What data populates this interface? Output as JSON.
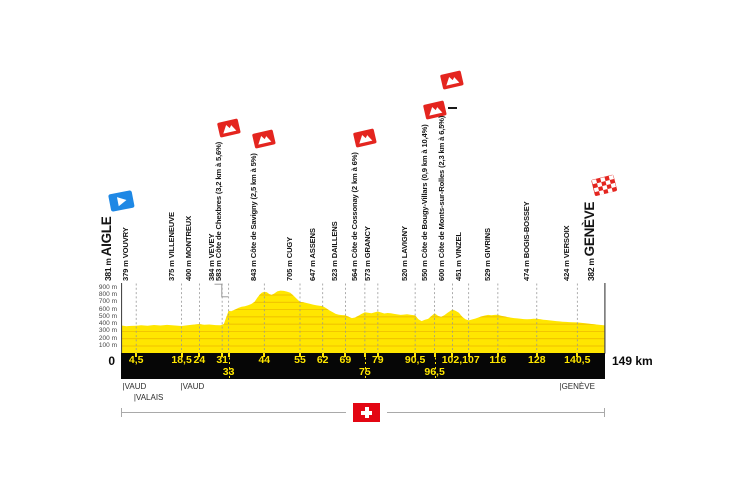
{
  "stage": {
    "origin_label": "0",
    "total_label": "149 km",
    "start_name": "AIGLE",
    "finish_name": "GENÈVE"
  },
  "chart_data": {
    "type": "area",
    "xlabel": "km",
    "ylabel": "m",
    "xlim": [
      0,
      149
    ],
    "ylim": [
      0,
      960
    ],
    "grid": "horizontal-inside-area",
    "y_ticks": [
      "900 m",
      "800 m",
      "700 m",
      "600 m",
      "500 m",
      "400 m",
      "300 m",
      "200 m",
      "100 m"
    ],
    "km_ticks_row1": [
      {
        "label": "4,5",
        "km": 4.5
      },
      {
        "label": "18,5",
        "km": 18.5
      },
      {
        "label": "24",
        "km": 24
      },
      {
        "label": "31",
        "km": 31
      },
      {
        "label": "44",
        "km": 44
      },
      {
        "label": "55",
        "km": 55
      },
      {
        "label": "62",
        "km": 62
      },
      {
        "label": "69",
        "km": 69
      },
      {
        "label": "79",
        "km": 79
      },
      {
        "label": "90,5",
        "km": 90.5
      },
      {
        "label": "102,107",
        "km": 104.55
      },
      {
        "label": "116",
        "km": 116
      },
      {
        "label": "128",
        "km": 128
      },
      {
        "label": "140,5",
        "km": 140.5
      }
    ],
    "km_ticks_row2": [
      {
        "label": "33",
        "km": 33
      },
      {
        "label": "75",
        "km": 75
      },
      {
        "label": "96,5",
        "km": 96.5
      }
    ],
    "waypoints": [
      {
        "km": 0,
        "elevation": "381 m",
        "name": "AIGLE",
        "type": "start"
      },
      {
        "km": 4.5,
        "elevation": "379 m",
        "name": "VOUVRY",
        "type": "town"
      },
      {
        "km": 18.5,
        "elevation": "375 m",
        "name": "VILLENEUVE",
        "type": "town"
      },
      {
        "km": 24,
        "elevation": "400 m",
        "name": "MONTREUX",
        "type": "town"
      },
      {
        "km": 31,
        "elevation": "384 m",
        "name": "VEVEY",
        "type": "town"
      },
      {
        "km": 33,
        "elevation": "583 m",
        "name": "Côte de Chexbres (3,2 km à 5,6%)",
        "type": "climb"
      },
      {
        "km": 44,
        "elevation": "843 m",
        "name": "Côte de Savigny (2,5 km à 5%)",
        "type": "climb"
      },
      {
        "km": 55,
        "elevation": "705 m",
        "name": "CUGY",
        "type": "town"
      },
      {
        "km": 62,
        "elevation": "647 m",
        "name": "ASSENS",
        "type": "town"
      },
      {
        "km": 69,
        "elevation": "523 m",
        "name": "DAILLENS",
        "type": "town"
      },
      {
        "km": 75,
        "elevation": "564 m",
        "name": "Côte de Cossonay (2 km à 6%)",
        "type": "climb"
      },
      {
        "km": 79,
        "elevation": "573 m",
        "name": "GRANCY",
        "type": "town"
      },
      {
        "km": 90.5,
        "elevation": "520 m",
        "name": "LAVIGNY",
        "type": "town"
      },
      {
        "km": 96.5,
        "elevation": "550 m",
        "name": "Côte de Bougy-Villars (0,9 km à 10,4%)",
        "type": "climb"
      },
      {
        "km": 102,
        "elevation": "600 m",
        "name": "Côte de Monts-sur-Rolles (2,3 km à 6,5%)",
        "type": "climb",
        "raised": true
      },
      {
        "km": 107,
        "elevation": "451 m",
        "name": "VINZEL",
        "type": "town"
      },
      {
        "km": 116,
        "elevation": "529 m",
        "name": "GIVRINS",
        "type": "town"
      },
      {
        "km": 128,
        "elevation": "474 m",
        "name": "BOGIS-BOSSEY",
        "type": "town"
      },
      {
        "km": 140.5,
        "elevation": "424 m",
        "name": "VERSOIX",
        "type": "town"
      },
      {
        "km": 149,
        "elevation": "382 m",
        "name": "GENÈVE",
        "type": "finish"
      }
    ],
    "profile": [
      [
        0,
        381
      ],
      [
        1.5,
        372
      ],
      [
        3,
        376
      ],
      [
        4.5,
        379
      ],
      [
        6,
        384
      ],
      [
        8,
        378
      ],
      [
        10,
        388
      ],
      [
        12,
        381
      ],
      [
        14,
        389
      ],
      [
        16,
        382
      ],
      [
        18.5,
        375
      ],
      [
        20,
        383
      ],
      [
        22,
        393
      ],
      [
        24,
        400
      ],
      [
        25.5,
        391
      ],
      [
        27,
        395
      ],
      [
        29,
        387
      ],
      [
        30.5,
        384
      ],
      [
        31.5,
        400
      ],
      [
        33,
        583
      ],
      [
        33.8,
        576
      ],
      [
        35,
        601
      ],
      [
        36,
        622
      ],
      [
        37,
        638
      ],
      [
        38,
        646
      ],
      [
        39,
        659
      ],
      [
        40,
        676
      ],
      [
        41,
        706
      ],
      [
        41.8,
        760
      ],
      [
        42.5,
        801
      ],
      [
        43.2,
        831
      ],
      [
        44,
        843
      ],
      [
        44.8,
        838
      ],
      [
        45.5,
        813
      ],
      [
        46.2,
        801
      ],
      [
        47,
        819
      ],
      [
        48,
        849
      ],
      [
        49,
        860
      ],
      [
        50,
        856
      ],
      [
        51,
        846
      ],
      [
        52,
        831
      ],
      [
        53,
        791
      ],
      [
        54,
        746
      ],
      [
        55,
        705
      ],
      [
        56,
        699
      ],
      [
        57,
        690
      ],
      [
        58,
        680
      ],
      [
        59,
        668
      ],
      [
        60,
        660
      ],
      [
        61,
        652
      ],
      [
        62,
        647
      ],
      [
        63,
        621
      ],
      [
        64,
        591
      ],
      [
        65,
        566
      ],
      [
        66,
        541
      ],
      [
        67,
        528
      ],
      [
        68,
        524
      ],
      [
        69,
        523
      ],
      [
        70,
        501
      ],
      [
        71,
        483
      ],
      [
        72,
        491
      ],
      [
        73,
        516
      ],
      [
        74,
        541
      ],
      [
        75,
        564
      ],
      [
        76,
        556
      ],
      [
        77,
        549
      ],
      [
        78,
        561
      ],
      [
        79,
        573
      ],
      [
        80,
        559
      ],
      [
        81,
        546
      ],
      [
        82,
        553
      ],
      [
        83,
        549
      ],
      [
        84,
        541
      ],
      [
        85,
        533
      ],
      [
        86,
        527
      ],
      [
        87,
        531
      ],
      [
        88,
        536
      ],
      [
        89,
        529
      ],
      [
        90.5,
        520
      ],
      [
        91.5,
        468
      ],
      [
        92.5,
        442
      ],
      [
        93.5,
        460
      ],
      [
        94.5,
        472
      ],
      [
        95.5,
        511
      ],
      [
        96.5,
        550
      ],
      [
        97.5,
        516
      ],
      [
        98.5,
        499
      ],
      [
        99.5,
        521
      ],
      [
        100.5,
        556
      ],
      [
        101.5,
        586
      ],
      [
        102,
        600
      ],
      [
        103,
        581
      ],
      [
        104,
        556
      ],
      [
        105,
        501
      ],
      [
        106,
        466
      ],
      [
        107,
        451
      ],
      [
        108,
        463
      ],
      [
        109,
        476
      ],
      [
        110,
        491
      ],
      [
        111,
        506
      ],
      [
        112,
        519
      ],
      [
        113,
        526
      ],
      [
        114,
        522
      ],
      [
        115,
        527
      ],
      [
        116,
        529
      ],
      [
        117,
        516
      ],
      [
        118,
        506
      ],
      [
        119,
        496
      ],
      [
        120,
        489
      ],
      [
        121,
        483
      ],
      [
        122,
        479
      ],
      [
        123,
        473
      ],
      [
        124,
        469
      ],
      [
        125,
        466
      ],
      [
        126,
        469
      ],
      [
        127,
        473
      ],
      [
        128,
        474
      ],
      [
        129,
        469
      ],
      [
        130,
        461
      ],
      [
        131,
        456
      ],
      [
        132,
        451
      ],
      [
        133,
        446
      ],
      [
        134,
        441
      ],
      [
        135,
        437
      ],
      [
        136,
        433
      ],
      [
        137,
        430
      ],
      [
        138,
        428
      ],
      [
        139,
        426
      ],
      [
        140.5,
        424
      ],
      [
        141.5,
        419
      ],
      [
        143,
        411
      ],
      [
        144.5,
        403
      ],
      [
        146,
        396
      ],
      [
        147.5,
        389
      ],
      [
        149,
        382
      ]
    ],
    "colors": {
      "profile_yellow": "#FFE600",
      "inner_grid": "#E3A300",
      "climb_red": "#E4251F",
      "depart_blue": "#1E88E5",
      "swiss_red": "#E30613",
      "km_text": "#FFE600",
      "bar_black": "#060606"
    }
  },
  "regions": [
    {
      "label": "|VAUD",
      "km": 0.3,
      "row": 1
    },
    {
      "label": "|VALAIS",
      "km": 3.8,
      "row": 2
    },
    {
      "label": "|VAUD",
      "km": 18.2,
      "row": 1
    },
    {
      "label": "|GENÈVE",
      "km": 135,
      "row": 1
    }
  ],
  "footer": {
    "flag": "swiss-flag"
  }
}
